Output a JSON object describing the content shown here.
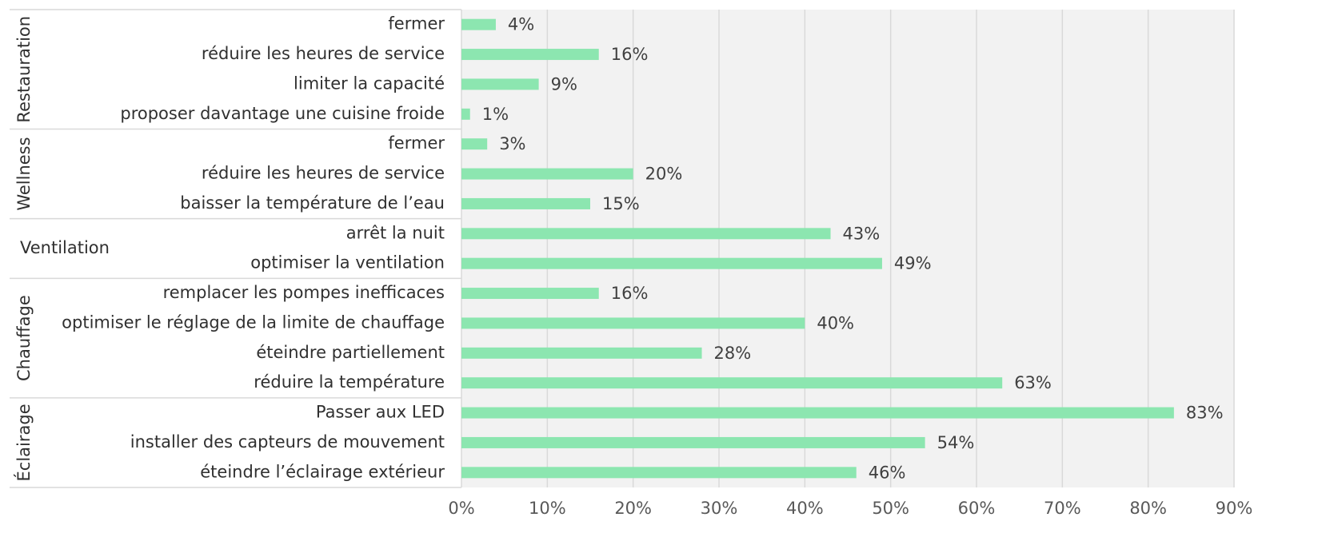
{
  "chart_data": {
    "type": "bar",
    "orientation": "horizontal",
    "color": "#8ce6b0",
    "grid": true,
    "groups": [
      {
        "name": "Restauration",
        "categories": [
          "fermer",
          "réduire les heures de service",
          "limiter la capacité",
          "proposer davantage une cuisine froide"
        ],
        "values": [
          4,
          16,
          9,
          1
        ],
        "value_labels": [
          "4%",
          "16%",
          "9%",
          "1%"
        ]
      },
      {
        "name": "Wellness",
        "categories": [
          "fermer",
          "réduire les heures de service",
          "baisser la température de l’eau"
        ],
        "values": [
          3,
          20,
          15
        ],
        "value_labels": [
          "3%",
          "20%",
          "15%"
        ]
      },
      {
        "name": "Ventilation",
        "categories": [
          "arrêt la nuit",
          "optimiser la ventilation"
        ],
        "values": [
          43,
          49
        ],
        "value_labels": [
          "43%",
          "49%"
        ]
      },
      {
        "name": "Chauffage",
        "categories": [
          "remplacer les pompes inefficaces",
          "optimiser le réglage de la limite de chauffage",
          "éteindre partiellement",
          "réduire la température"
        ],
        "values": [
          16,
          40,
          28,
          63
        ],
        "value_labels": [
          "16%",
          "40%",
          "28%",
          "63%"
        ]
      },
      {
        "name": "Éclairage",
        "categories": [
          "Passer aux LED",
          "installer des capteurs de mouvement",
          "éteindre l’éclairage extérieur"
        ],
        "values": [
          83,
          54,
          46
        ],
        "value_labels": [
          "83%",
          "54%",
          "46%"
        ]
      }
    ],
    "xlim": [
      0,
      90
    ],
    "xticks": [
      {
        "value": 0,
        "label": "0%"
      },
      {
        "value": 10,
        "label": "10%"
      },
      {
        "value": 20,
        "label": "20%"
      },
      {
        "value": 30,
        "label": "30%"
      },
      {
        "value": 40,
        "label": "40%"
      },
      {
        "value": 50,
        "label": "50%"
      },
      {
        "value": 60,
        "label": "60%"
      },
      {
        "value": 70,
        "label": "70%"
      },
      {
        "value": 80,
        "label": "80%"
      },
      {
        "value": 90,
        "label": "90%"
      }
    ]
  }
}
